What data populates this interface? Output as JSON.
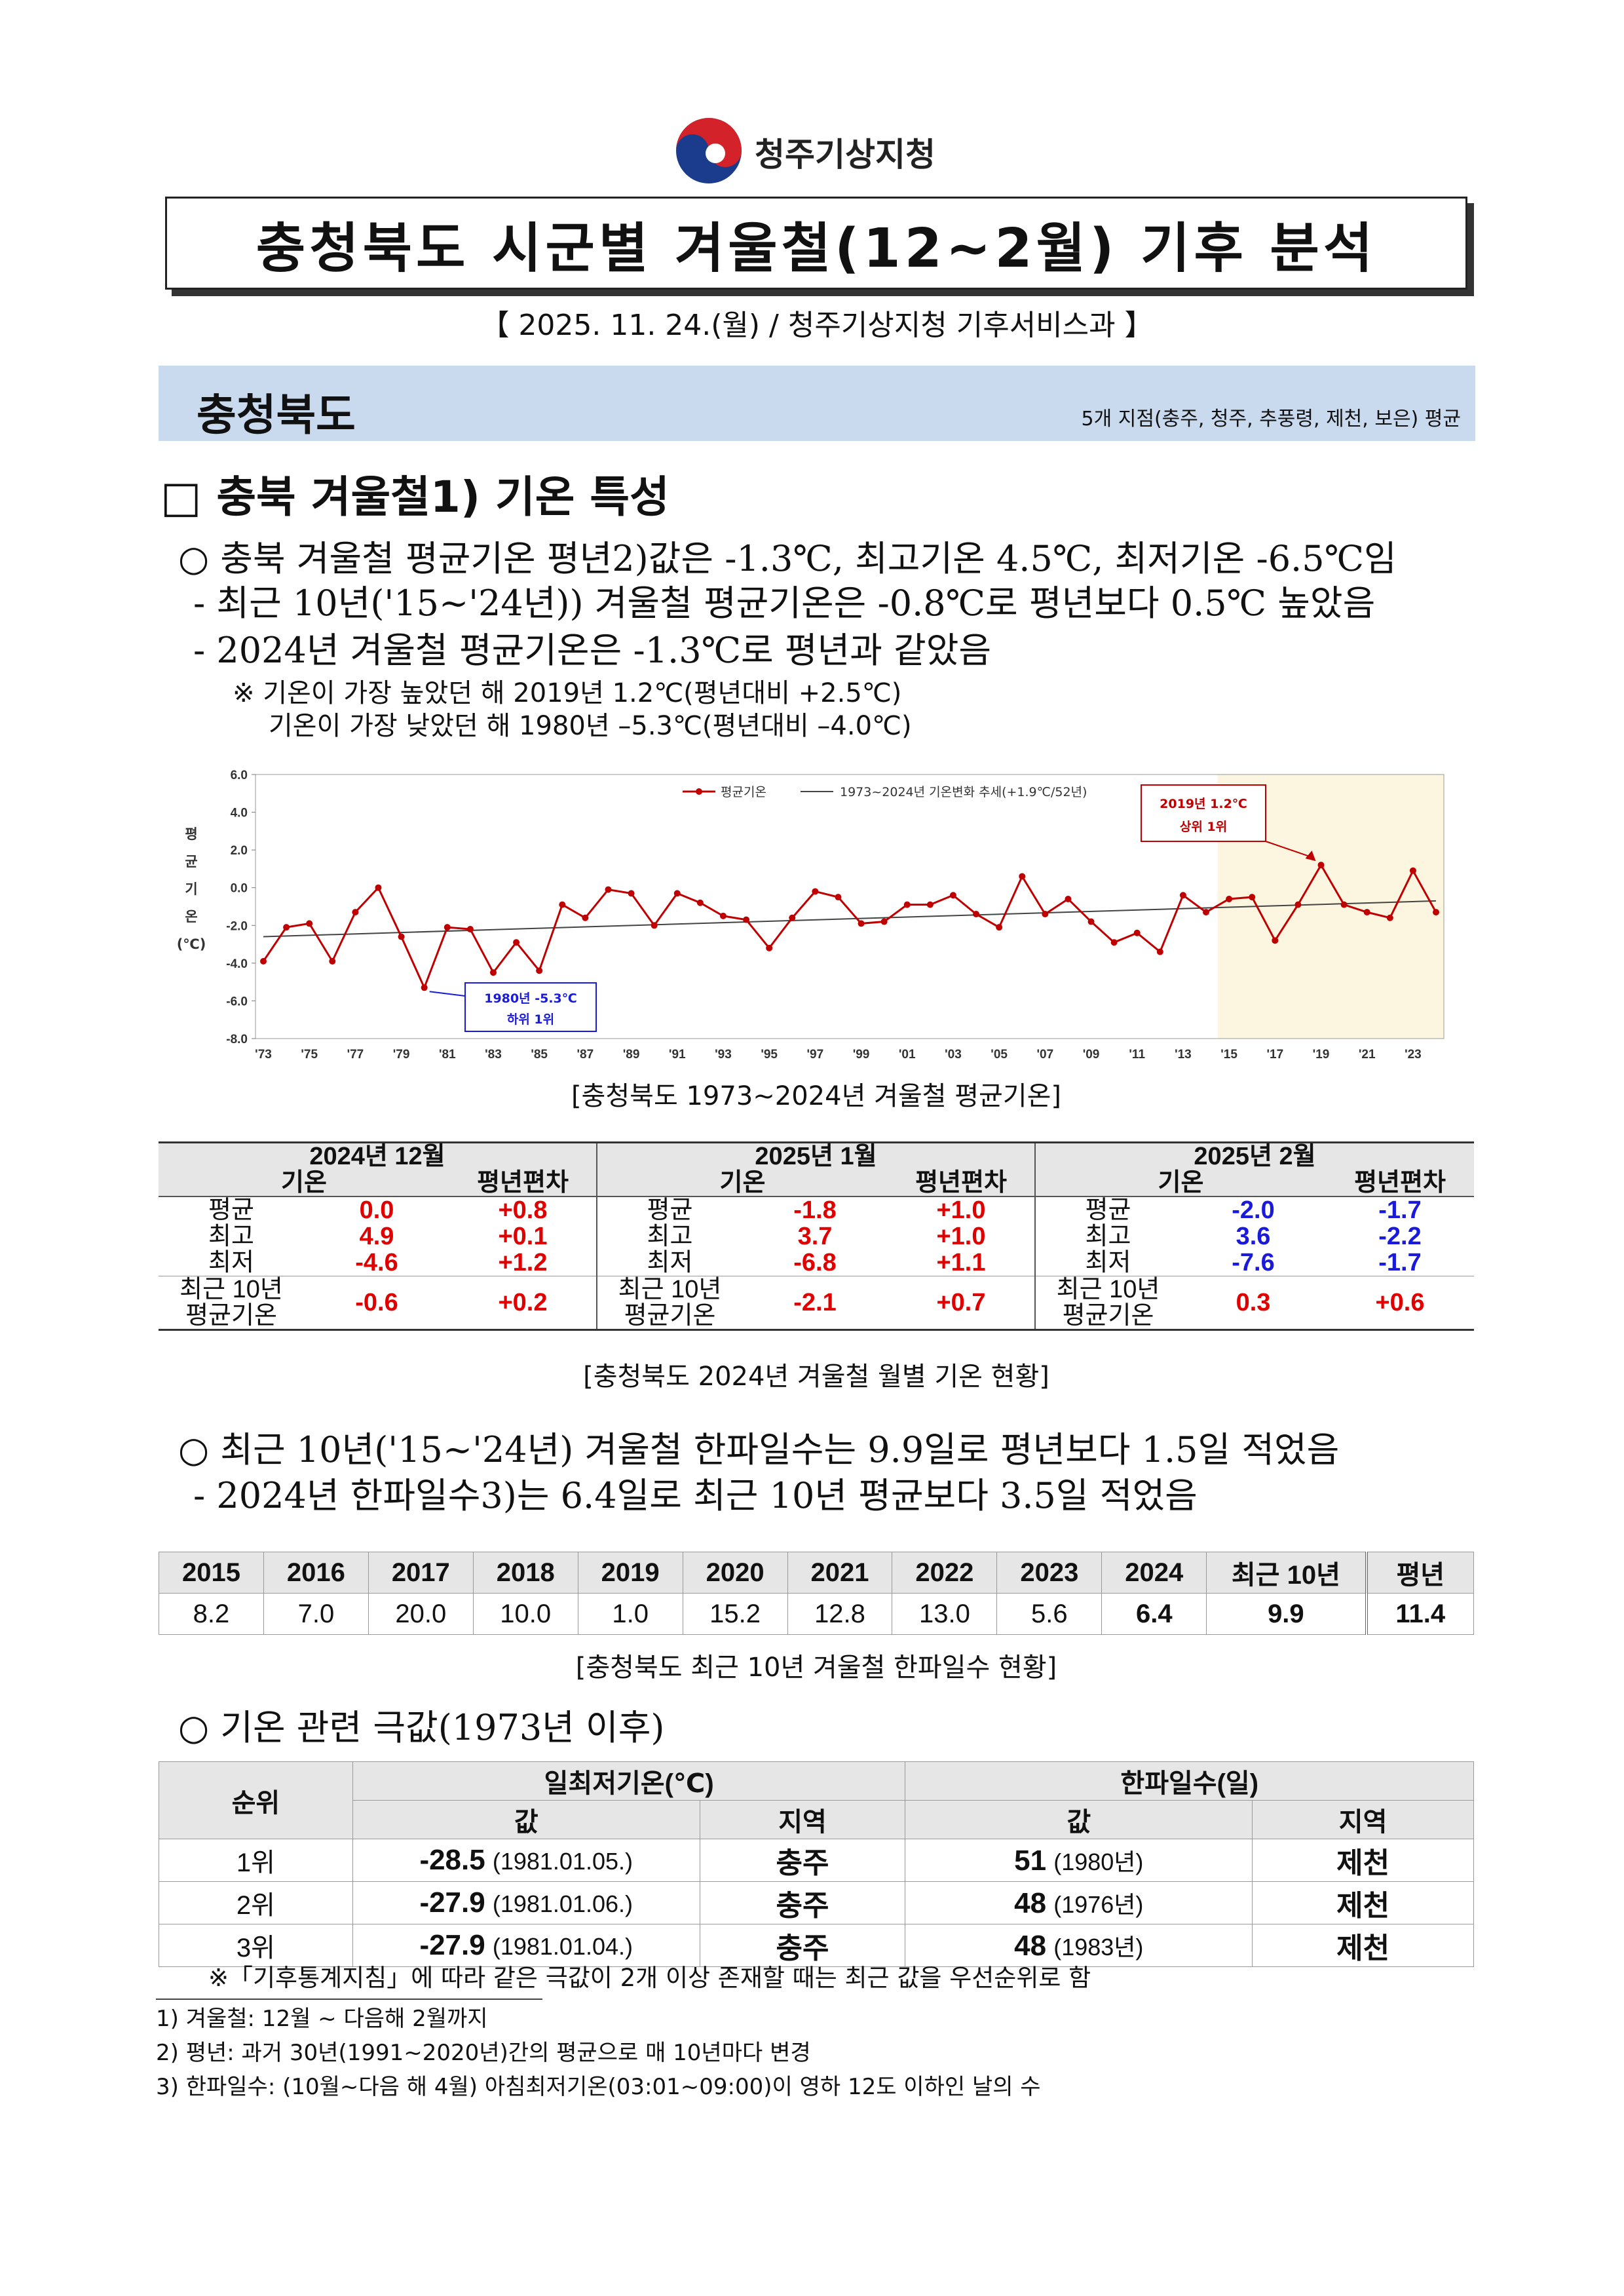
{
  "header": {
    "org": "청주기상지청",
    "title": "충청북도 시군별 겨울철(12~2월) 기후 분석",
    "dateline": "【 2025. 11. 24.(월) / 청주기상지청 기후서비스과 】"
  },
  "region": {
    "name": "충청북도",
    "note": "5개 지점(충주, 청주, 추풍령, 제천, 보은) 평균"
  },
  "section": {
    "title": "□ 충북 겨울철1) 기온 특성",
    "b1": "○ 충북 겨울철 평균기온 평년2)값은 -1.3℃, 최고기온 4.5℃, 최저기온 -6.5℃임",
    "b1a": "- 최근 10년('15~'24년)) 겨울철 평균기온은 -0.8℃로 평년보다 0.5℃ 높았음",
    "b1b": "- 2024년 겨울철 평균기온은 -1.3℃로 평년과 같았음",
    "n1": "※ 기온이 가장 높았던 해 2019년 1.2℃(평년대비 +2.5℃)",
    "n2": "기온이 가장 낮았던 해 1980년 –5.3℃(평년대비 –4.0℃)",
    "b2": "○ 최근 10년('15~'24년) 겨울철 한파일수는 9.9일로 평년보다 1.5일 적었음",
    "b2a": "- 2024년 한파일수3)는 6.4일로 최근 10년 평균보다 3.5일 적었음",
    "b3": "○ 기온 관련 극값(1973년 이후)"
  },
  "chart_data": {
    "type": "line",
    "caption": "[충청북도 1973~2024년 겨울철 평균기온]",
    "ylabel": "평균기온(℃)",
    "ylim": [
      -8.0,
      6.0
    ],
    "yticks": [
      "6.0",
      "4.0",
      "2.0",
      "0.0",
      "-2.0",
      "-4.0",
      "-6.0",
      "-8.0"
    ],
    "xtick_labels": [
      "'73",
      "'75",
      "'77",
      "'79",
      "'81",
      "'83",
      "'85",
      "'87",
      "'89",
      "'91",
      "'93",
      "'95",
      "'97",
      "'99",
      "'01",
      "'03",
      "'05",
      "'07",
      "'09",
      "'11",
      "'13",
      "'15",
      "'17",
      "'19",
      "'21",
      "'23"
    ],
    "x": [
      1973,
      1974,
      1975,
      1976,
      1977,
      1978,
      1979,
      1980,
      1981,
      1982,
      1983,
      1984,
      1985,
      1986,
      1987,
      1988,
      1989,
      1990,
      1991,
      1992,
      1993,
      1994,
      1995,
      1996,
      1997,
      1998,
      1999,
      2000,
      2001,
      2002,
      2003,
      2004,
      2005,
      2006,
      2007,
      2008,
      2009,
      2010,
      2011,
      2012,
      2013,
      2014,
      2015,
      2016,
      2017,
      2018,
      2019,
      2020,
      2021,
      2022,
      2023,
      2024
    ],
    "series": [
      {
        "name": "평균기온",
        "color": "#c00000",
        "values": [
          -3.9,
          -2.1,
          -1.9,
          -3.9,
          -1.3,
          0.0,
          -2.6,
          -5.3,
          -2.1,
          -2.2,
          -4.5,
          -2.9,
          -4.4,
          -0.9,
          -1.6,
          -0.1,
          -0.3,
          -2.0,
          -0.3,
          -0.8,
          -1.5,
          -1.7,
          -3.2,
          -1.6,
          -0.2,
          -0.5,
          -1.9,
          -1.8,
          -0.9,
          -0.9,
          -0.4,
          -1.4,
          -2.1,
          0.6,
          -1.4,
          -0.6,
          -1.8,
          -2.9,
          -2.4,
          -3.4,
          -0.4,
          -1.3,
          -0.6,
          -0.5,
          -2.8,
          -0.9,
          1.2,
          -0.9,
          -1.3,
          -1.6,
          0.9,
          -1.3
        ]
      },
      {
        "name": "1973~2024년 기온변화 추세(+1.9℃/52년)",
        "color": "#444444",
        "values_endpoints": [
          -2.6,
          -0.7
        ]
      }
    ],
    "highlight_range": [
      "'15",
      "'24"
    ],
    "annotations": [
      {
        "text1": "2019년 1.2℃",
        "text2": "상위 1위",
        "color": "#c00000"
      },
      {
        "text1": "1980년 -5.3℃",
        "text2": "하위 1위",
        "color": "#1a1adc"
      }
    ]
  },
  "monthly_table": {
    "caption": "[충청북도 2024년 겨울철 월별 기온 현황]",
    "months": [
      "2024년 12월",
      "2025년 1월",
      "2025년 2월"
    ],
    "col_temp": "기온",
    "col_dev": "평년편차",
    "row_labels": [
      "평균",
      "최고",
      "최저",
      "최근 10년",
      "평균기온"
    ],
    "dec": [
      "0.0",
      "+0.8",
      "4.9",
      "+0.1",
      "-4.6",
      "+1.2",
      "-0.6",
      "+0.2"
    ],
    "jan": [
      "-1.8",
      "+1.0",
      "3.7",
      "+1.0",
      "-6.8",
      "+1.1",
      "-2.1",
      "+0.7"
    ],
    "feb": [
      "-2.0",
      "-1.7",
      "3.6",
      "-2.2",
      "-7.6",
      "-1.7",
      "0.3",
      "+0.6"
    ]
  },
  "coldwave_table": {
    "caption": "[충청북도 최근 10년 겨울철 한파일수 현황]",
    "headers": [
      "2015",
      "2016",
      "2017",
      "2018",
      "2019",
      "2020",
      "2021",
      "2022",
      "2023",
      "2024",
      "최근 10년",
      "평년"
    ],
    "values": [
      "8.2",
      "7.0",
      "20.0",
      "10.0",
      "1.0",
      "15.2",
      "12.8",
      "13.0",
      "5.6",
      "6.4",
      "9.9",
      "11.4"
    ]
  },
  "extremes_table": {
    "h_rank": "순위",
    "h_min": "일최저기온(℃)",
    "h_cold": "한파일수(일)",
    "h_val": "값",
    "h_area": "지역",
    "rows": [
      {
        "rank": "1위",
        "min_v": "-28.5",
        "min_d": "(1981.01.05.)",
        "min_a": "충주",
        "cold_v": "51",
        "cold_d": "(1980년)",
        "cold_a": "제천"
      },
      {
        "rank": "2위",
        "min_v": "-27.9",
        "min_d": "(1981.01.06.)",
        "min_a": "충주",
        "cold_v": "48",
        "cold_d": "(1976년)",
        "cold_a": "제천"
      },
      {
        "rank": "3위",
        "min_v": "-27.9",
        "min_d": "(1981.01.04.)",
        "min_a": "충주",
        "cold_v": "48",
        "cold_d": "(1983년)",
        "cold_a": "제천"
      }
    ],
    "note": "※「기후통계지침」에 따라 같은 극값이 2개 이상 존재할 때는 최근 값을 우선순위로 함"
  },
  "footnotes": [
    "1) 겨울철: 12월 ~ 다음해 2월까지",
    "2) 평년: 과거 30년(1991~2020년)간의 평균으로 매 10년마다 변경",
    "3) 한파일수: (10월~다음 해 4월) 아침최저기온(03:01~09:00)이 영하 12도 이하인 날의 수"
  ]
}
